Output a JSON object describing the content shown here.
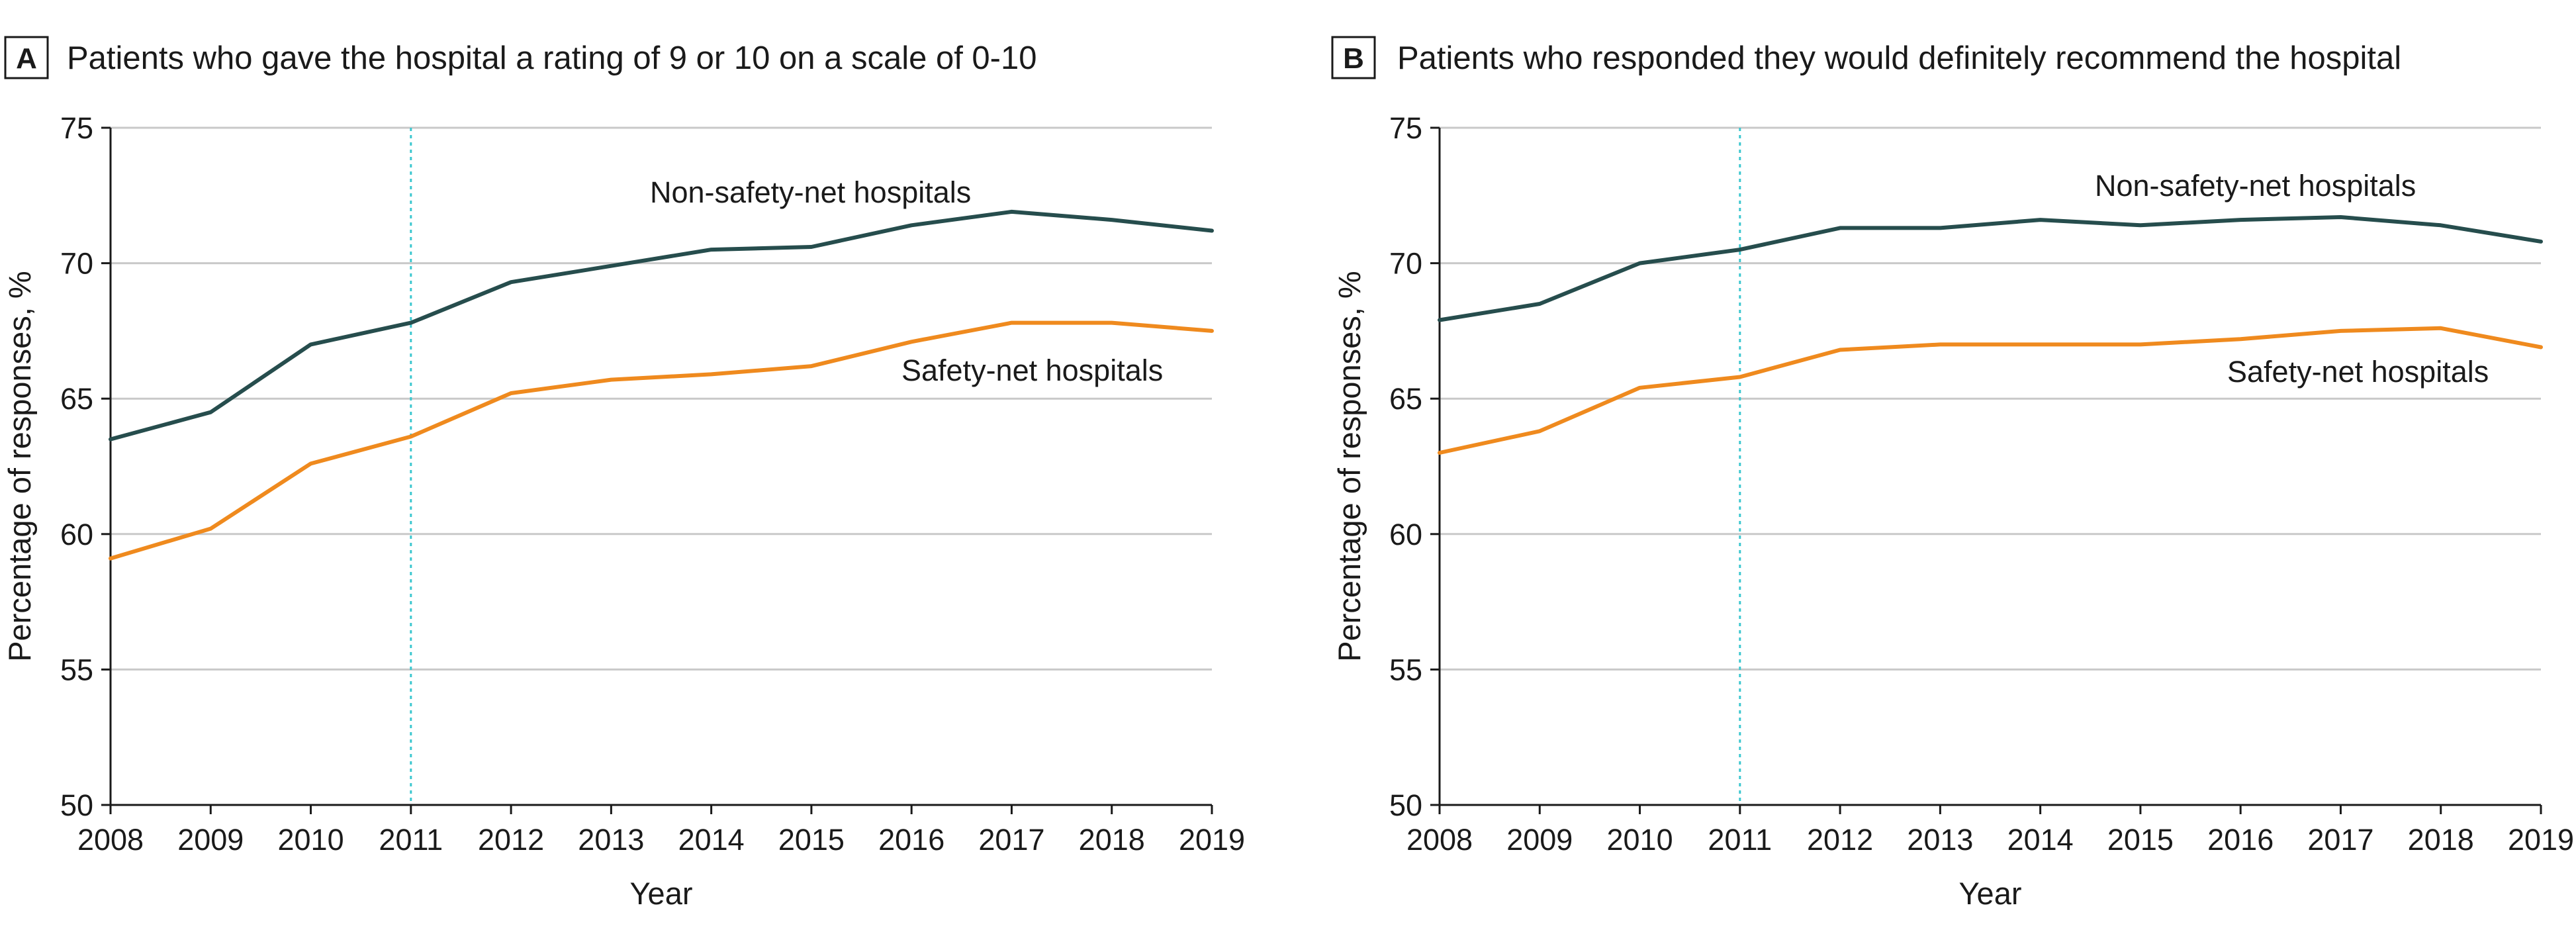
{
  "chart_data": [
    {
      "type": "line",
      "panel_label": "A",
      "title": "Patients who gave the hospital a rating of 9 or 10 on a scale of 0-10",
      "xlabel": "Year",
      "ylabel": "Percentage of responses, %",
      "x": [
        2008,
        2009,
        2010,
        2011,
        2012,
        2013,
        2014,
        2015,
        2016,
        2017,
        2018,
        2019
      ],
      "x_tick_labels": [
        "2008",
        "2009",
        "2010",
        "2011",
        "2012",
        "2013",
        "2014",
        "2015",
        "2016",
        "2017",
        "2018",
        "2019"
      ],
      "ylim": [
        50,
        75
      ],
      "y_ticks": [
        50,
        55,
        60,
        65,
        70,
        75
      ],
      "y_tick_labels": [
        "50",
        "55",
        "60",
        "65",
        "70",
        "75"
      ],
      "grid": true,
      "reference_line_x": 2011,
      "series": [
        {
          "name": "Non-safety-net hospitals",
          "color": "#264d4d",
          "values": [
            63.5,
            64.5,
            67.0,
            67.8,
            69.3,
            69.9,
            70.5,
            70.6,
            71.4,
            71.9,
            71.6,
            71.2
          ]
        },
        {
          "name": "Safety-net hospitals",
          "color": "#ef8a1e",
          "values": [
            59.1,
            60.2,
            62.6,
            63.6,
            65.2,
            65.7,
            65.9,
            66.2,
            67.1,
            67.8,
            67.8,
            67.5
          ]
        }
      ]
    },
    {
      "type": "line",
      "panel_label": "B",
      "title": "Patients who responded they would definitely recommend the hospital",
      "xlabel": "Year",
      "ylabel": "Percentage of responses, %",
      "x": [
        2008,
        2009,
        2010,
        2011,
        2012,
        2013,
        2014,
        2015,
        2016,
        2017,
        2018,
        2019
      ],
      "x_tick_labels": [
        "2008",
        "2009",
        "2010",
        "2011",
        "2012",
        "2013",
        "2014",
        "2015",
        "2016",
        "2017",
        "2018",
        "2019"
      ],
      "ylim": [
        50,
        75
      ],
      "y_ticks": [
        50,
        55,
        60,
        65,
        70,
        75
      ],
      "y_tick_labels": [
        "50",
        "55",
        "60",
        "65",
        "70",
        "75"
      ],
      "grid": true,
      "reference_line_x": 2011,
      "series": [
        {
          "name": "Non-safety-net hospitals",
          "color": "#264d4d",
          "values": [
            67.9,
            68.5,
            70.0,
            70.5,
            71.3,
            71.3,
            71.6,
            71.4,
            71.6,
            71.7,
            71.4,
            70.8
          ]
        },
        {
          "name": "Safety-net hospitals",
          "color": "#ef8a1e",
          "values": [
            63.0,
            63.8,
            65.4,
            65.8,
            66.8,
            67.0,
            67.0,
            67.0,
            67.2,
            67.5,
            67.6,
            66.9
          ]
        }
      ]
    }
  ],
  "colors": {
    "text": "#1a1a1a",
    "grid": "#c9c9c9",
    "reference_line": "#3cc7cf"
  }
}
